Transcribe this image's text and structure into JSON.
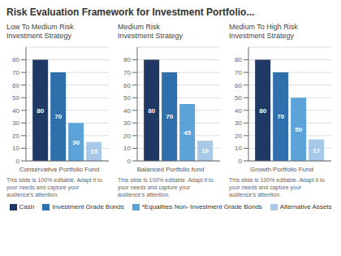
{
  "title": "Risk Evaluation Framework for Investment Portfolio...",
  "chart_data": [
    {
      "type": "bar",
      "title": "Low To Medium Risk\nInvestment Strategy",
      "xlabel": "Conservative Portfolio Fund",
      "annotation": "This slide is 100% editable. Adapt it to\nyour needs and capture your\naudience's attention.",
      "categories": [
        null
      ],
      "series": [
        {
          "name": "Cash",
          "color": "#1f3864",
          "values": [
            80
          ]
        },
        {
          "name": "Investment Grade Bonds",
          "color": "#2e6fac",
          "values": [
            70
          ]
        },
        {
          "name": "*Equalities Non- Investment Grade Bonds",
          "color": "#5ba3d9",
          "values": [
            30
          ]
        },
        {
          "name": "Alternative Assets",
          "color": "#a8c8e8",
          "values": [
            15
          ]
        }
      ],
      "ylim": [
        0,
        90
      ],
      "yticks": [
        0,
        10,
        20,
        30,
        40,
        50,
        60,
        70,
        80
      ],
      "grid": true,
      "data_labels": true,
      "tick_labels": "y",
      "legend": "bottom"
    },
    {
      "type": "bar",
      "title": "Medium Risk\nInvestment Strategy",
      "xlabel": "Balanced Portfolio fund",
      "annotation": "This slide is 100% editable. Adapt it to\nyour needs and capture your\naudience's attention.",
      "categories": [
        null
      ],
      "series": [
        {
          "name": "Cash",
          "color": "#1f3864",
          "values": [
            80
          ]
        },
        {
          "name": "Investment Grade Bonds",
          "color": "#2e6fac",
          "values": [
            70
          ]
        },
        {
          "name": "*Equalities Non- Investment Grade Bonds",
          "color": "#5ba3d9",
          "values": [
            45
          ]
        },
        {
          "name": "Alternative Assets",
          "color": "#a8c8e8",
          "values": [
            16
          ]
        }
      ],
      "ylim": [
        0,
        90
      ],
      "yticks": [
        0,
        10,
        20,
        30,
        40,
        50,
        60,
        70,
        80
      ],
      "grid": true,
      "data_labels": true,
      "tick_labels": "y",
      "legend": "bottom"
    },
    {
      "type": "bar",
      "title": "Medium To High Risk\nInvestment Strategy",
      "xlabel": "Growth Portfolio Fund",
      "annotation": "This slide is 100% editable. Adapt it to\nyour needs and capture your\naudience's attention.",
      "categories": [
        null
      ],
      "series": [
        {
          "name": "Cash",
          "color": "#1f3864",
          "values": [
            80
          ]
        },
        {
          "name": "Investment Grade Bonds",
          "color": "#2e6fac",
          "values": [
            70
          ]
        },
        {
          "name": "*Equalities Non- Investment Grade Bonds",
          "color": "#5ba3d9",
          "values": [
            50
          ]
        },
        {
          "name": "Alternative Assets",
          "color": "#a8c8e8",
          "values": [
            17
          ]
        }
      ],
      "ylim": [
        0,
        90
      ],
      "yticks": [
        0,
        10,
        20,
        30,
        40,
        50,
        60,
        70,
        80
      ],
      "grid": true,
      "data_labels": true,
      "tick_labels": "y",
      "legend": "bottom"
    }
  ]
}
